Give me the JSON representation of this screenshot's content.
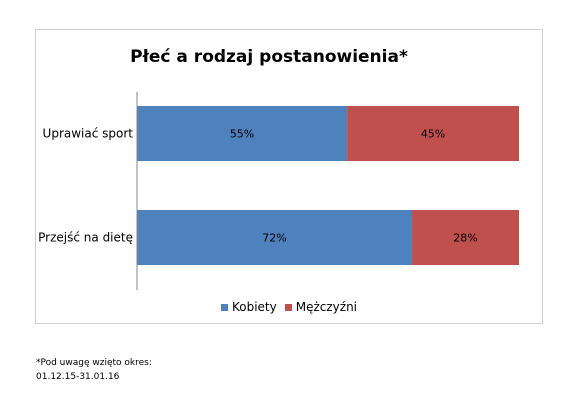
{
  "chart_data": {
    "type": "bar",
    "orientation": "horizontal",
    "stacked": true,
    "title": "Płeć a rodzaj postanowienia*",
    "categories": [
      "Uprawiać sport",
      "Przejść na dietę"
    ],
    "series": [
      {
        "name": "Kobiety",
        "values": [
          55,
          72
        ],
        "labels": [
          "55%",
          "72%"
        ],
        "color": "#4f81bd"
      },
      {
        "name": "Mężczyźni",
        "values": [
          45,
          28
        ],
        "labels": [
          "45%",
          "28%"
        ],
        "color": "#c0504d"
      }
    ],
    "xlim": [
      0,
      100
    ],
    "grid": false,
    "legend_position": "bottom"
  },
  "footnote": {
    "line1": "*Pod uwagę wzięto okres:",
    "line2": "01.12.15-31.01.16"
  }
}
